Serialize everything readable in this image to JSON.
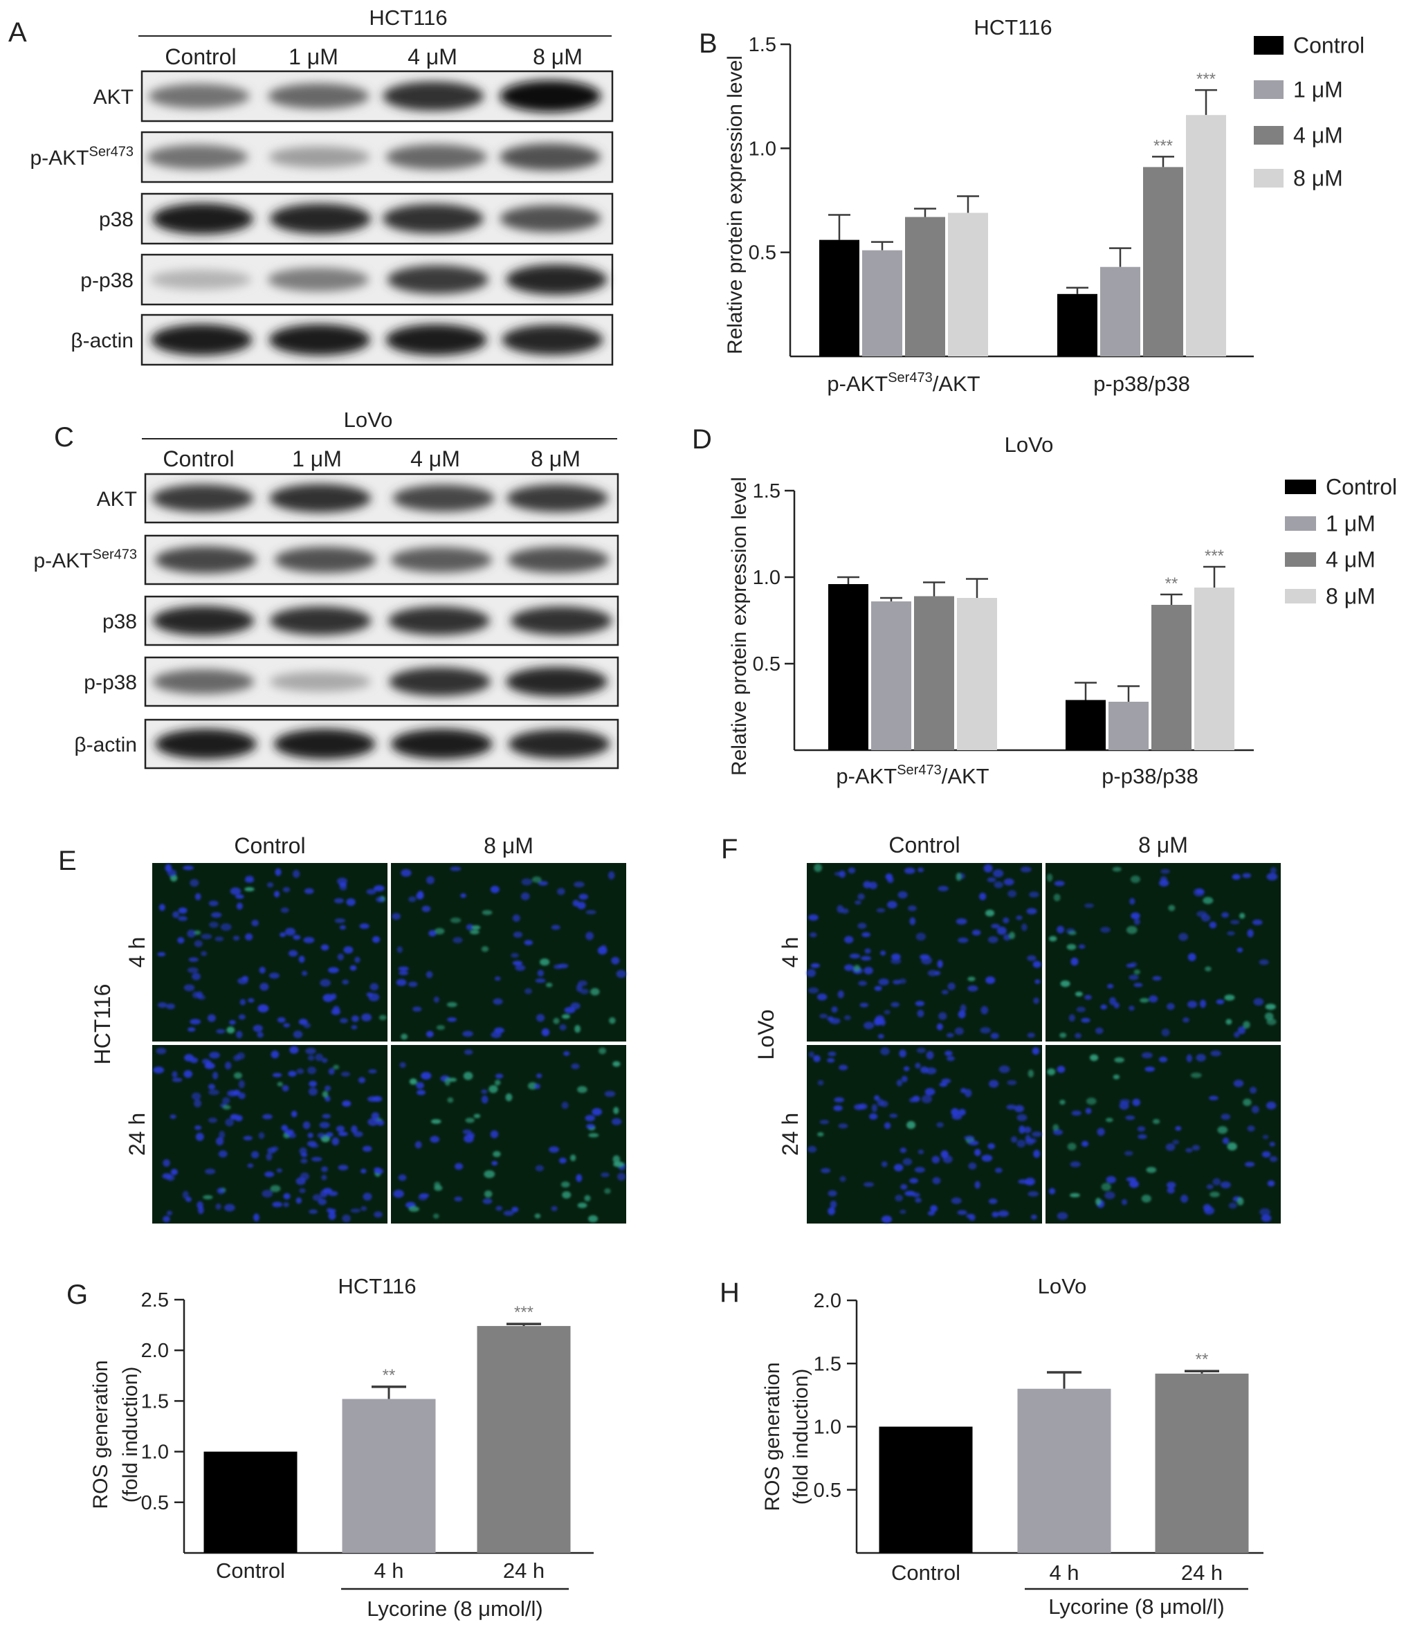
{
  "colors": {
    "control": "#000000",
    "c1": "#a0a0a8",
    "c4": "#808080",
    "c8": "#d4d4d4",
    "err": "#3a3a3a",
    "star": "#7a7a7a",
    "fluor_dark": "#06200f",
    "nuclei": "#2a3ad8",
    "green_cells": "#2f9c7c"
  },
  "panels": {
    "A": "A",
    "B": "B",
    "C": "C",
    "D": "D",
    "E": "E",
    "F": "F",
    "G": "G",
    "H": "H"
  },
  "blots": [
    {
      "cell_line": "HCT116",
      "lanes": [
        "Control",
        "1 μM",
        "4 μM",
        "8 μM"
      ],
      "rows": [
        {
          "label": "AKT",
          "sup": "",
          "intensity": [
            0.55,
            0.6,
            0.85,
            1.0
          ]
        },
        {
          "label": "p-AKT",
          "sup": "Ser473",
          "intensity": [
            0.55,
            0.35,
            0.6,
            0.7
          ]
        },
        {
          "label": "p38",
          "sup": "",
          "intensity": [
            0.95,
            0.9,
            0.85,
            0.7
          ]
        },
        {
          "label": "p-p38",
          "sup": "",
          "intensity": [
            0.25,
            0.5,
            0.8,
            0.9
          ]
        },
        {
          "label": "β-actin",
          "sup": "",
          "intensity": [
            0.95,
            0.95,
            0.95,
            0.9
          ]
        }
      ]
    },
    {
      "cell_line": "LoVo",
      "lanes": [
        "Control",
        "1 μM",
        "4 μM",
        "8 μM"
      ],
      "rows": [
        {
          "label": "AKT",
          "sup": "",
          "intensity": [
            0.8,
            0.85,
            0.75,
            0.8
          ]
        },
        {
          "label": "p-AKT",
          "sup": "Ser473",
          "intensity": [
            0.75,
            0.7,
            0.65,
            0.7
          ]
        },
        {
          "label": "p38",
          "sup": "",
          "intensity": [
            0.9,
            0.85,
            0.85,
            0.85
          ]
        },
        {
          "label": "p-p38",
          "sup": "",
          "intensity": [
            0.6,
            0.3,
            0.85,
            0.9
          ]
        },
        {
          "label": "β-actin",
          "sup": "",
          "intensity": [
            0.95,
            0.95,
            0.95,
            0.9
          ]
        }
      ]
    }
  ],
  "microscopy": [
    {
      "cell_line": "HCT116",
      "columns": [
        "Control",
        "8 μM"
      ],
      "rows": [
        "4 h",
        "24 h"
      ],
      "green_level": [
        [
          0.05,
          0.35
        ],
        [
          0.05,
          0.45
        ]
      ]
    },
    {
      "cell_line": "LoVo",
      "columns": [
        "Control",
        "8 μM"
      ],
      "rows": [
        "4 h",
        "24 h"
      ],
      "green_level": [
        [
          0.05,
          0.3
        ],
        [
          0.05,
          0.35
        ]
      ]
    }
  ],
  "chart_data": [
    {
      "type": "bar",
      "panel": "B",
      "title": "HCT116",
      "ylabel": "Relative protein expression level",
      "ylim": [
        0,
        1.5
      ],
      "yticks": [
        "0.5",
        "1.0",
        "1.5"
      ],
      "groups": [
        {
          "main": "p-AKT",
          "sup": "Ser473",
          "rest": "/AKT"
        },
        {
          "main": "p-p38/p38",
          "sup": "",
          "rest": ""
        }
      ],
      "series": [
        {
          "name": "Control",
          "values": [
            0.56,
            0.3
          ],
          "errors": [
            0.12,
            0.03
          ],
          "sig": [
            "",
            ""
          ]
        },
        {
          "name": "1 μM",
          "values": [
            0.51,
            0.43
          ],
          "errors": [
            0.04,
            0.09
          ],
          "sig": [
            "",
            ""
          ]
        },
        {
          "name": "4 μM",
          "values": [
            0.67,
            0.91
          ],
          "errors": [
            0.04,
            0.05
          ],
          "sig": [
            "",
            "***"
          ]
        },
        {
          "name": "8 μM",
          "values": [
            0.69,
            1.16
          ],
          "errors": [
            0.08,
            0.12
          ],
          "sig": [
            "",
            "***"
          ]
        }
      ],
      "legend": "right"
    },
    {
      "type": "bar",
      "panel": "D",
      "title": "LoVo",
      "ylabel": "Relative protein expression level",
      "ylim": [
        0,
        1.5
      ],
      "yticks": [
        "0.5",
        "1.0",
        "1.5"
      ],
      "groups": [
        {
          "main": "p-AKT",
          "sup": "Ser473",
          "rest": "/AKT"
        },
        {
          "main": "p-p38/p38",
          "sup": "",
          "rest": ""
        }
      ],
      "series": [
        {
          "name": "Control",
          "values": [
            0.96,
            0.29
          ],
          "errors": [
            0.04,
            0.1
          ],
          "sig": [
            "",
            ""
          ]
        },
        {
          "name": "1 μM",
          "values": [
            0.86,
            0.28
          ],
          "errors": [
            0.02,
            0.09
          ],
          "sig": [
            "",
            ""
          ]
        },
        {
          "name": "4 μM",
          "values": [
            0.89,
            0.84
          ],
          "errors": [
            0.08,
            0.06
          ],
          "sig": [
            "",
            "**"
          ]
        },
        {
          "name": "8 μM",
          "values": [
            0.88,
            0.94
          ],
          "errors": [
            0.11,
            0.12
          ],
          "sig": [
            "",
            "***"
          ]
        }
      ],
      "legend": "right"
    },
    {
      "type": "bar",
      "panel": "G",
      "title": "HCT116",
      "ylabel_lines": [
        "ROS generation",
        "(fold induction)"
      ],
      "ylim": [
        0,
        2.5
      ],
      "yticks": [
        "0.5",
        "1.0",
        "1.5",
        "2.0",
        "2.5"
      ],
      "categories": [
        "Control",
        "4 h",
        "24 h"
      ],
      "values": [
        1.0,
        1.52,
        2.24
      ],
      "errors": [
        0,
        0.12,
        0.02
      ],
      "sig": [
        "",
        "**",
        "***"
      ],
      "bracket_label": "Lycorine (8 μmol/l)"
    },
    {
      "type": "bar",
      "panel": "H",
      "title": "LoVo",
      "ylabel_lines": [
        "ROS generation",
        "(fold induction)"
      ],
      "ylim": [
        0,
        2.0
      ],
      "yticks": [
        "0.5",
        "1.0",
        "1.5",
        "2.0"
      ],
      "categories": [
        "Control",
        "4 h",
        "24 h"
      ],
      "values": [
        1.0,
        1.3,
        1.42
      ],
      "errors": [
        0,
        0.13,
        0.02
      ],
      "sig": [
        "",
        "",
        "**"
      ],
      "bracket_label": "Lycorine (8 μmol/l)"
    }
  ]
}
